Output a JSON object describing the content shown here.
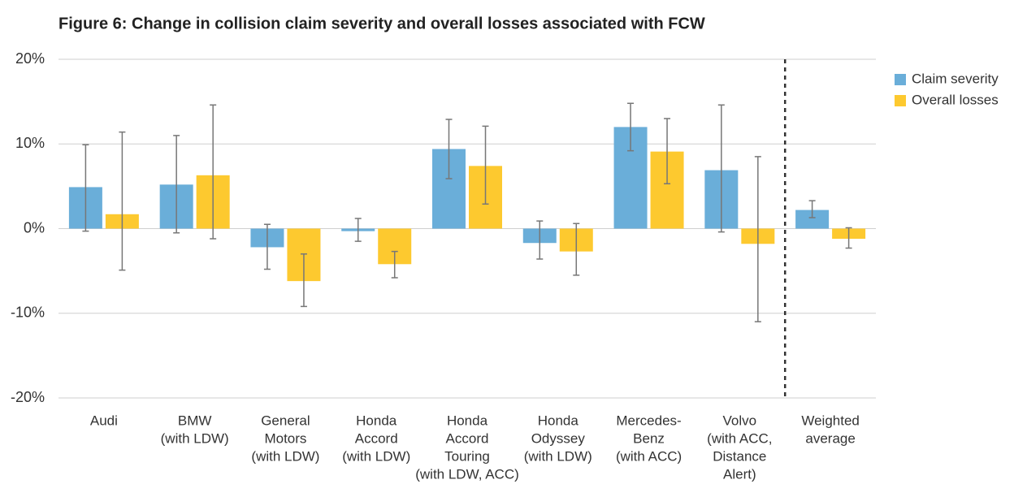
{
  "chart_data": {
    "type": "bar",
    "title": "Figure 6: Change in collision claim severity and overall losses associated with FCW",
    "categories": [
      [
        "Audi"
      ],
      [
        "BMW",
        "(with LDW)"
      ],
      [
        "General",
        "Motors",
        "(with LDW)"
      ],
      [
        "Honda",
        "Accord",
        "(with LDW)"
      ],
      [
        "Honda",
        "Accord",
        "Touring",
        "(with LDW, ACC)"
      ],
      [
        "Honda",
        "Odyssey",
        "(with LDW)"
      ],
      [
        "Mercedes-",
        "Benz",
        "(with ACC)"
      ],
      [
        "Volvo",
        "(with ACC,",
        "Distance",
        "Alert)"
      ],
      [
        "Weighted",
        "average"
      ]
    ],
    "series": [
      {
        "name": "Claim severity",
        "color": "#6aaed9",
        "values": [
          4.9,
          5.2,
          -2.2,
          -0.3,
          9.4,
          -1.7,
          12.0,
          6.9,
          2.2
        ],
        "low": [
          -0.3,
          -0.5,
          -4.8,
          -1.5,
          5.9,
          -3.6,
          9.2,
          -0.4,
          1.3
        ],
        "high": [
          9.9,
          11.0,
          0.5,
          1.2,
          12.9,
          0.9,
          14.8,
          14.6,
          3.3
        ]
      },
      {
        "name": "Overall losses",
        "color": "#fdc92f",
        "values": [
          1.7,
          6.3,
          -6.2,
          -4.2,
          7.4,
          -2.7,
          9.1,
          -1.8,
          -1.2
        ],
        "low": [
          -4.9,
          -1.2,
          -9.2,
          -5.8,
          2.9,
          -5.5,
          5.3,
          -11.0,
          -2.3
        ],
        "high": [
          11.4,
          14.6,
          -3.0,
          -2.7,
          12.1,
          0.6,
          13.0,
          8.5,
          0.1
        ]
      }
    ],
    "ylim": [
      -20,
      20
    ],
    "yticks": [
      {
        "value": -20,
        "label": "-20%"
      },
      {
        "value": -10,
        "label": "-10%"
      },
      {
        "value": 0,
        "label": "0%"
      },
      {
        "value": 10,
        "label": "10%"
      },
      {
        "value": 20,
        "label": "20%"
      }
    ],
    "grid": true,
    "legend": "top-right"
  }
}
